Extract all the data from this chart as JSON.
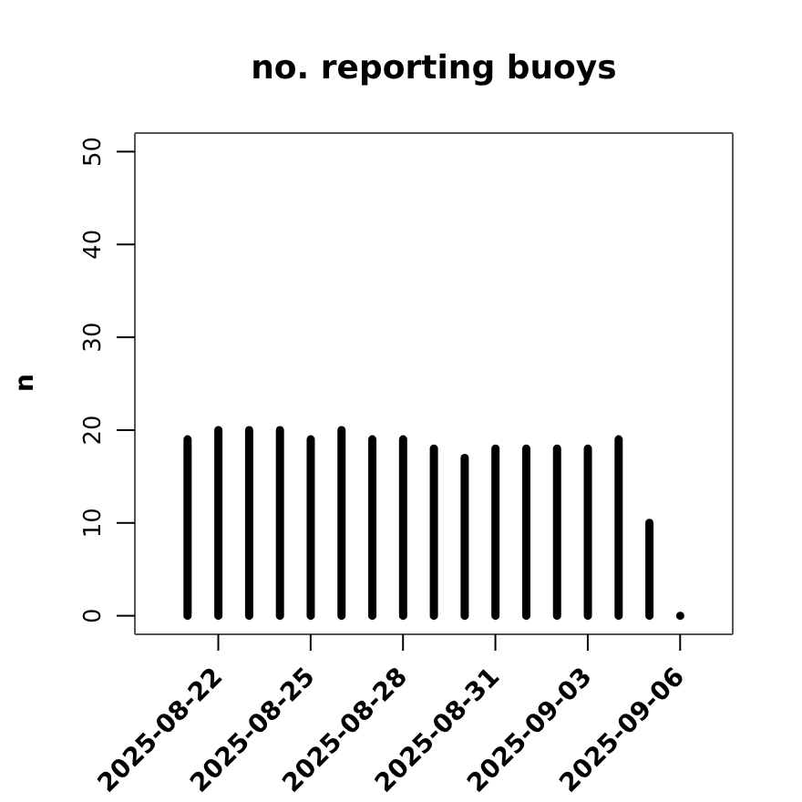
{
  "chart_data": {
    "type": "bar",
    "title": "no. reporting buoys",
    "ylabel": "n",
    "x": [
      "2025-08-21",
      "2025-08-22",
      "2025-08-23",
      "2025-08-24",
      "2025-08-25",
      "2025-08-26",
      "2025-08-27",
      "2025-08-28",
      "2025-08-29",
      "2025-08-30",
      "2025-08-31",
      "2025-09-01",
      "2025-09-02",
      "2025-09-03",
      "2025-09-04",
      "2025-09-05",
      "2025-09-06"
    ],
    "values": [
      19,
      20,
      20,
      20,
      19,
      20,
      19,
      19,
      18,
      17,
      18,
      18,
      18,
      18,
      19,
      10,
      0
    ],
    "color": "#000000",
    "xlim": [
      "2025-08-19T07:00",
      "2025-09-07T17:00"
    ],
    "xticks": [
      "2025-08-22",
      "2025-08-25",
      "2025-08-28",
      "2025-08-31",
      "2025-09-03",
      "2025-09-06"
    ],
    "ylim": [
      -2,
      52
    ],
    "yticks": [
      0,
      10,
      20,
      30,
      40,
      50
    ]
  }
}
